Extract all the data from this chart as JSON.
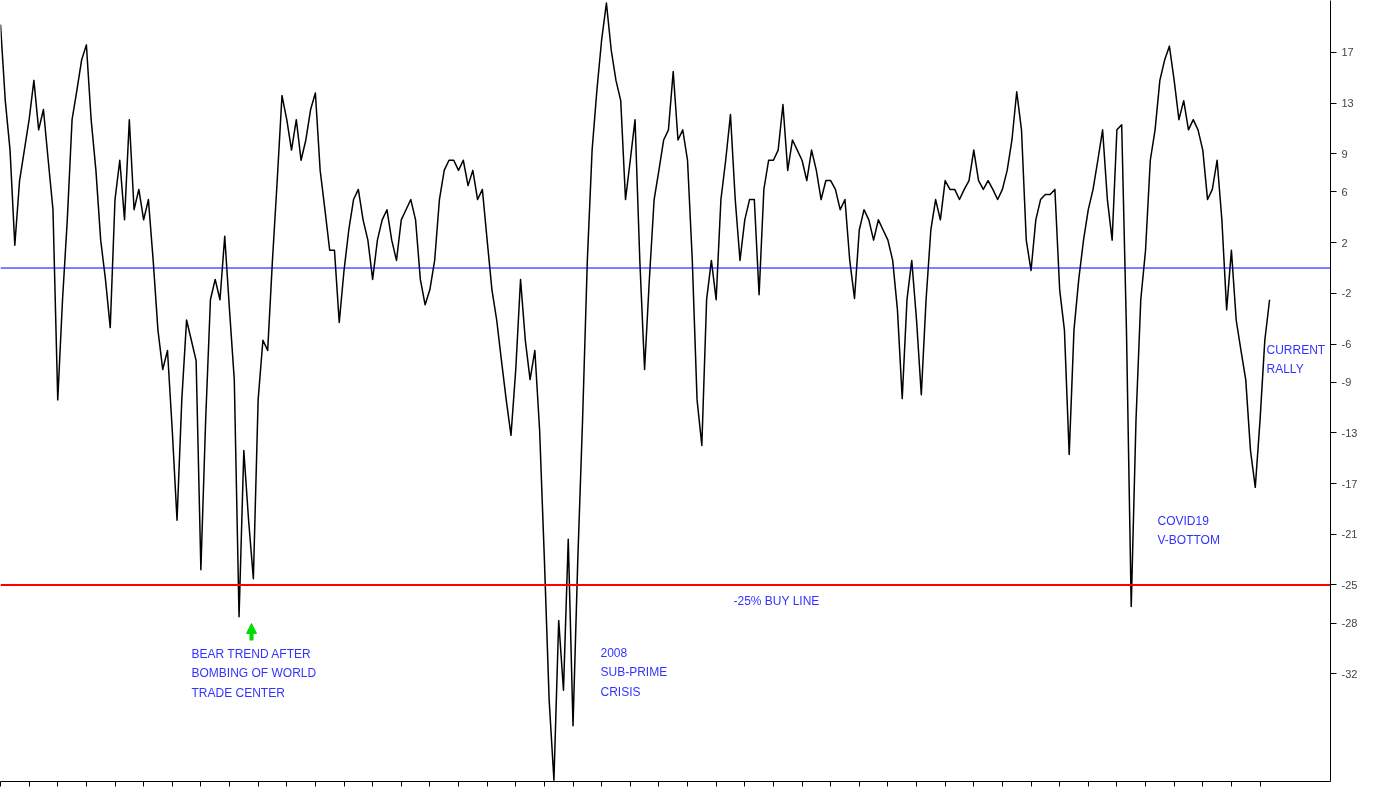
{
  "chart_data": {
    "type": "line",
    "categories": [
      null,
      null,
      null,
      null,
      null,
      null,
      null,
      null,
      null,
      null,
      null,
      null,
      null,
      null,
      null,
      null,
      null,
      null,
      null,
      null,
      null,
      null,
      null,
      null,
      null,
      null,
      null,
      null,
      null,
      null,
      null,
      null,
      null,
      null,
      null,
      null,
      null,
      null,
      null,
      null,
      null,
      null,
      null,
      null,
      null,
      null,
      null,
      null,
      null,
      null,
      null,
      null,
      null,
      null,
      null,
      null,
      null,
      null,
      null,
      null,
      null,
      null,
      null,
      null,
      null,
      null,
      null,
      null,
      null,
      null,
      null,
      null,
      null,
      null,
      null,
      null,
      null,
      null,
      null,
      null,
      null,
      null,
      null,
      null,
      null,
      null,
      null,
      null,
      null,
      null,
      null,
      null,
      null,
      null,
      null,
      null,
      null,
      null,
      null,
      null,
      null,
      null,
      null,
      null,
      null,
      null,
      null,
      null,
      null,
      null,
      null,
      null,
      null,
      null,
      null,
      null,
      null,
      null,
      null,
      null,
      null,
      null,
      null,
      null,
      null,
      null,
      null,
      null,
      null,
      null,
      null,
      null,
      null,
      null,
      null,
      null,
      null,
      null,
      null,
      null,
      null,
      null,
      null,
      null,
      null,
      null,
      null,
      null,
      null,
      null,
      null,
      null,
      null,
      null,
      null,
      null,
      null,
      null,
      null,
      null,
      null,
      null,
      null,
      null,
      null,
      null,
      null,
      null,
      null,
      null,
      null,
      null,
      null,
      null,
      null,
      null,
      null,
      null,
      null,
      null,
      null,
      null,
      null,
      null,
      null,
      null,
      null,
      null,
      null,
      null,
      null,
      null,
      null,
      null,
      null,
      null,
      null,
      null,
      null,
      null,
      null,
      null,
      null,
      null,
      null,
      null,
      null,
      null,
      null,
      null,
      null,
      null,
      null,
      null,
      null,
      null,
      null,
      null,
      null,
      null,
      null,
      null,
      null,
      null,
      null,
      null,
      null,
      null,
      null,
      null,
      null,
      null,
      null,
      null,
      null,
      null,
      null,
      null,
      null,
      null,
      null,
      null,
      null,
      null,
      null,
      null,
      null,
      null,
      null,
      null,
      null,
      null,
      null,
      null,
      null,
      null,
      null,
      null,
      null,
      null,
      null,
      null,
      null,
      null,
      null,
      null,
      null
    ],
    "series": [
      {
        "color": "#000000",
        "values": [
          19.2,
          13.2,
          9.3,
          1.8,
          6.9,
          9.3,
          11.7,
          14.8,
          10.9,
          12.5,
          8.5,
          4.6,
          -10.4,
          -2.5,
          3.8,
          11.7,
          14.0,
          16.4,
          17.6,
          11.7,
          7.7,
          2.2,
          -0.9,
          -4.7,
          5.4,
          8.5,
          3.8,
          11.7,
          4.6,
          6.2,
          3.8,
          5.4,
          0.6,
          -4.9,
          -8.0,
          -6.5,
          -12.8,
          -19.9,
          -10.4,
          -4.1,
          -5.7,
          -7.3,
          -23.8,
          -12.0,
          -2.5,
          -0.9,
          -2.5,
          2.5,
          -3.3,
          -8.8,
          -27.5,
          -14.4,
          -19.9,
          -24.5,
          -10.4,
          -5.7,
          -6.5,
          0.6,
          6.9,
          13.6,
          11.7,
          9.3,
          11.7,
          8.5,
          10.1,
          12.5,
          13.8,
          7.7,
          4.6,
          1.4,
          1.4,
          -4.3,
          -0.2,
          3.0,
          5.4,
          6.2,
          3.8,
          2.2,
          -0.9,
          2.2,
          3.8,
          4.6,
          2.2,
          0.6,
          3.8,
          4.6,
          5.4,
          3.8,
          -0.9,
          -2.9,
          -1.7,
          0.6,
          5.4,
          7.7,
          8.5,
          8.5,
          7.7,
          8.5,
          6.5,
          7.7,
          5.4,
          6.2,
          2.2,
          -1.7,
          -4.1,
          -7.3,
          -10.4,
          -13.2,
          -8.0,
          -0.9,
          -5.7,
          -8.8,
          -6.5,
          -12.8,
          -23.0,
          -34.1,
          -40.4,
          -27.8,
          -33.3,
          -21.4,
          -36.1,
          -23.0,
          -12.0,
          0.6,
          9.3,
          14.0,
          18.0,
          20.9,
          17.2,
          14.8,
          13.2,
          5.4,
          8.5,
          11.7,
          0.6,
          -8.0,
          -0.9,
          5.4,
          7.7,
          10.1,
          10.9,
          15.5,
          10.1,
          10.9,
          8.5,
          0.6,
          -10.4,
          -14.0,
          -2.5,
          0.6,
          -2.5,
          5.4,
          8.5,
          12.1,
          5.4,
          0.6,
          3.8,
          5.4,
          5.4,
          -2.1,
          6.2,
          8.5,
          8.5,
          9.3,
          12.9,
          7.7,
          10.1,
          9.3,
          8.5,
          6.9,
          9.3,
          7.7,
          5.4,
          6.9,
          6.9,
          6.2,
          4.6,
          5.4,
          0.6,
          -2.4,
          3.0,
          4.6,
          3.8,
          2.2,
          3.8,
          3.0,
          2.2,
          0.6,
          -3.3,
          -10.3,
          -2.5,
          0.6,
          -4.1,
          -10.0,
          -2.5,
          3.0,
          5.4,
          3.8,
          6.9,
          6.2,
          6.2,
          5.4,
          6.2,
          6.9,
          9.3,
          6.9,
          6.2,
          6.9,
          6.2,
          5.4,
          6.2,
          7.7,
          10.1,
          13.9,
          10.9,
          2.2,
          -0.2,
          3.8,
          5.4,
          5.8,
          5.8,
          6.2,
          -1.7,
          -4.9,
          -14.7,
          -4.9,
          -0.9,
          2.2,
          4.6,
          6.2,
          8.5,
          10.9,
          5.4,
          2.2,
          10.9,
          11.3,
          -4.9,
          -26.7,
          -12.0,
          -2.5,
          1.4,
          8.5,
          10.9,
          14.8,
          16.4,
          17.5,
          14.8,
          11.7,
          13.2,
          10.9,
          11.7,
          10.9,
          9.3,
          5.4,
          6.2,
          8.5,
          3.8,
          -3.3,
          1.4,
          -4.1,
          -6.5,
          -8.8,
          -14.4,
          -17.3,
          -12.0,
          -5.7,
          -2.5
        ]
      }
    ],
    "ylim": [
      -40.5,
      21.1
    ],
    "yticks": [
      17,
      13,
      9,
      6,
      2,
      -2,
      -6,
      -9,
      -13,
      -17,
      -21,
      -25,
      -28,
      -32
    ],
    "tick_labels": "y",
    "ref_lines": [
      {
        "axis": "y",
        "value": 0,
        "color": "#0000ff"
      },
      {
        "axis": "y",
        "value": -25,
        "color": "#ff0000",
        "label": "-25% BUY LINE"
      }
    ],
    "annotations": [
      "BEAR TREND AFTER\nBOMBING OF WORLD\nTRADE CENTER",
      "2008\nSUB-PRIME\nCRISIS",
      "COVID19\nV-BOTTOM",
      "CURRENT\nRALLY"
    ]
  }
}
